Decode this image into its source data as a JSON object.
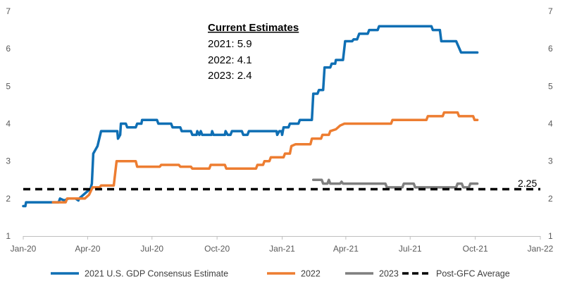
{
  "chart_data": {
    "type": "line",
    "title": "",
    "xlabel": "",
    "ylabel": "",
    "ylim": [
      1,
      7
    ],
    "yticks": [
      1,
      2,
      3,
      4,
      5,
      6,
      7
    ],
    "y_axis_right": true,
    "grid": false,
    "legend_position": "bottom",
    "x_range": [
      "2020-01-01",
      "2022-01-01"
    ],
    "x_ticks": [
      {
        "date": "2020-01-01",
        "label": "Jan-20"
      },
      {
        "date": "2020-04-01",
        "label": "Apr-20"
      },
      {
        "date": "2020-07-01",
        "label": "Jul-20"
      },
      {
        "date": "2020-10-01",
        "label": "Oct-20"
      },
      {
        "date": "2021-01-01",
        "label": "Jan-21"
      },
      {
        "date": "2021-04-01",
        "label": "Apr-21"
      },
      {
        "date": "2021-07-01",
        "label": "Jul-21"
      },
      {
        "date": "2021-10-01",
        "label": "Oct-21"
      },
      {
        "date": "2022-01-01",
        "label": "Jan-22"
      }
    ],
    "series": [
      {
        "name": "2021 U.S. GDP Consensus Estimate",
        "color": "#0F6FB4",
        "points": [
          [
            "2020-01-01",
            1.8
          ],
          [
            "2020-01-04",
            1.8
          ],
          [
            "2020-01-05",
            1.9
          ],
          [
            "2020-02-20",
            1.9
          ],
          [
            "2020-02-22",
            2.0
          ],
          [
            "2020-02-28",
            1.95
          ],
          [
            "2020-03-05",
            2.0
          ],
          [
            "2020-03-15",
            2.0
          ],
          [
            "2020-03-19",
            1.95
          ],
          [
            "2020-03-20",
            2.0
          ],
          [
            "2020-04-01",
            2.2
          ],
          [
            "2020-04-05",
            2.25
          ],
          [
            "2020-04-07",
            2.4
          ],
          [
            "2020-04-09",
            3.2
          ],
          [
            "2020-04-12",
            3.3
          ],
          [
            "2020-04-15",
            3.4
          ],
          [
            "2020-04-20",
            3.8
          ],
          [
            "2020-05-13",
            3.8
          ],
          [
            "2020-05-14",
            3.6
          ],
          [
            "2020-05-17",
            3.7
          ],
          [
            "2020-05-18",
            4.0
          ],
          [
            "2020-05-25",
            4.0
          ],
          [
            "2020-05-27",
            3.9
          ],
          [
            "2020-06-08",
            3.9
          ],
          [
            "2020-06-10",
            4.0
          ],
          [
            "2020-06-16",
            4.0
          ],
          [
            "2020-06-17",
            4.1
          ],
          [
            "2020-07-08",
            4.1
          ],
          [
            "2020-07-10",
            4.0
          ],
          [
            "2020-07-28",
            4.0
          ],
          [
            "2020-07-30",
            3.9
          ],
          [
            "2020-08-10",
            3.9
          ],
          [
            "2020-08-12",
            3.8
          ],
          [
            "2020-08-25",
            3.8
          ],
          [
            "2020-08-27",
            3.7
          ],
          [
            "2020-09-02",
            3.7
          ],
          [
            "2020-09-03",
            3.8
          ],
          [
            "2020-09-06",
            3.7
          ],
          [
            "2020-09-08",
            3.8
          ],
          [
            "2020-09-10",
            3.7
          ],
          [
            "2020-09-23",
            3.7
          ],
          [
            "2020-09-24",
            3.8
          ],
          [
            "2020-09-26",
            3.7
          ],
          [
            "2020-10-12",
            3.7
          ],
          [
            "2020-10-13",
            3.8
          ],
          [
            "2020-10-16",
            3.7
          ],
          [
            "2020-10-20",
            3.7
          ],
          [
            "2020-10-22",
            3.8
          ],
          [
            "2020-11-05",
            3.8
          ],
          [
            "2020-11-07",
            3.7
          ],
          [
            "2020-11-13",
            3.7
          ],
          [
            "2020-11-15",
            3.8
          ],
          [
            "2020-12-24",
            3.8
          ],
          [
            "2020-12-25",
            3.7
          ],
          [
            "2020-12-28",
            3.8
          ],
          [
            "2020-12-31",
            3.8
          ],
          [
            "2021-01-01",
            3.7
          ],
          [
            "2021-01-02",
            3.8
          ],
          [
            "2021-01-03",
            3.9
          ],
          [
            "2021-01-10",
            3.9
          ],
          [
            "2021-01-12",
            4.0
          ],
          [
            "2021-01-24",
            4.0
          ],
          [
            "2021-01-26",
            4.1
          ],
          [
            "2021-02-12",
            4.1
          ],
          [
            "2021-02-14",
            4.8
          ],
          [
            "2021-02-20",
            4.8
          ],
          [
            "2021-02-22",
            4.9
          ],
          [
            "2021-02-28",
            4.9
          ],
          [
            "2021-03-02",
            5.5
          ],
          [
            "2021-03-10",
            5.5
          ],
          [
            "2021-03-12",
            5.6
          ],
          [
            "2021-03-17",
            5.6
          ],
          [
            "2021-03-18",
            5.7
          ],
          [
            "2021-03-28",
            5.7
          ],
          [
            "2021-03-31",
            6.2
          ],
          [
            "2021-04-10",
            6.2
          ],
          [
            "2021-04-12",
            6.25
          ],
          [
            "2021-04-17",
            6.25
          ],
          [
            "2021-04-20",
            6.4
          ],
          [
            "2021-05-02",
            6.4
          ],
          [
            "2021-05-04",
            6.5
          ],
          [
            "2021-05-16",
            6.5
          ],
          [
            "2021-05-18",
            6.6
          ],
          [
            "2021-07-31",
            6.6
          ],
          [
            "2021-08-02",
            6.5
          ],
          [
            "2021-08-12",
            6.5
          ],
          [
            "2021-08-14",
            6.2
          ],
          [
            "2021-09-04",
            6.2
          ],
          [
            "2021-09-11",
            5.9
          ],
          [
            "2021-10-04",
            5.9
          ]
        ]
      },
      {
        "name": "2022",
        "color": "#ED7D31",
        "points": [
          [
            "2020-02-12",
            1.9
          ],
          [
            "2020-03-01",
            1.9
          ],
          [
            "2020-03-03",
            2.0
          ],
          [
            "2020-03-28",
            2.0
          ],
          [
            "2020-04-03",
            2.1
          ],
          [
            "2020-04-08",
            2.3
          ],
          [
            "2020-04-18",
            2.3
          ],
          [
            "2020-04-20",
            2.35
          ],
          [
            "2020-05-08",
            2.35
          ],
          [
            "2020-05-12",
            3.0
          ],
          [
            "2020-06-08",
            3.0
          ],
          [
            "2020-06-10",
            2.85
          ],
          [
            "2020-07-12",
            2.85
          ],
          [
            "2020-07-14",
            2.9
          ],
          [
            "2020-08-08",
            2.9
          ],
          [
            "2020-08-10",
            2.85
          ],
          [
            "2020-08-25",
            2.85
          ],
          [
            "2020-08-27",
            2.8
          ],
          [
            "2020-09-20",
            2.8
          ],
          [
            "2020-09-22",
            2.9
          ],
          [
            "2020-10-12",
            2.9
          ],
          [
            "2020-10-14",
            2.8
          ],
          [
            "2020-11-25",
            2.8
          ],
          [
            "2020-11-27",
            2.9
          ],
          [
            "2020-12-05",
            2.9
          ],
          [
            "2020-12-07",
            3.0
          ],
          [
            "2020-12-14",
            3.0
          ],
          [
            "2020-12-16",
            3.1
          ],
          [
            "2021-01-03",
            3.1
          ],
          [
            "2021-01-05",
            3.2
          ],
          [
            "2021-01-12",
            3.2
          ],
          [
            "2021-01-14",
            3.4
          ],
          [
            "2021-01-20",
            3.45
          ],
          [
            "2021-02-10",
            3.45
          ],
          [
            "2021-02-12",
            3.6
          ],
          [
            "2021-02-25",
            3.6
          ],
          [
            "2021-02-27",
            3.7
          ],
          [
            "2021-03-08",
            3.7
          ],
          [
            "2021-03-10",
            3.8
          ],
          [
            "2021-03-18",
            3.85
          ],
          [
            "2021-03-24",
            3.95
          ],
          [
            "2021-03-30",
            4.0
          ],
          [
            "2021-06-04",
            4.0
          ],
          [
            "2021-06-06",
            4.1
          ],
          [
            "2021-07-24",
            4.1
          ],
          [
            "2021-07-26",
            4.2
          ],
          [
            "2021-08-16",
            4.2
          ],
          [
            "2021-08-18",
            4.3
          ],
          [
            "2021-09-06",
            4.3
          ],
          [
            "2021-09-08",
            4.2
          ],
          [
            "2021-09-28",
            4.2
          ],
          [
            "2021-09-30",
            4.1
          ],
          [
            "2021-10-04",
            4.1
          ]
        ]
      },
      {
        "name": "2023",
        "color": "#7F7F7F",
        "points": [
          [
            "2021-02-14",
            2.5
          ],
          [
            "2021-02-26",
            2.5
          ],
          [
            "2021-02-28",
            2.4
          ],
          [
            "2021-03-06",
            2.4
          ],
          [
            "2021-03-08",
            2.5
          ],
          [
            "2021-03-10",
            2.4
          ],
          [
            "2021-03-24",
            2.4
          ],
          [
            "2021-03-26",
            2.45
          ],
          [
            "2021-03-28",
            2.4
          ],
          [
            "2021-05-27",
            2.4
          ],
          [
            "2021-05-29",
            2.3
          ],
          [
            "2021-06-20",
            2.3
          ],
          [
            "2021-06-22",
            2.4
          ],
          [
            "2021-07-06",
            2.4
          ],
          [
            "2021-07-08",
            2.3
          ],
          [
            "2021-09-04",
            2.3
          ],
          [
            "2021-09-06",
            2.4
          ],
          [
            "2021-09-12",
            2.4
          ],
          [
            "2021-09-14",
            2.3
          ],
          [
            "2021-09-22",
            2.3
          ],
          [
            "2021-09-24",
            2.4
          ],
          [
            "2021-10-04",
            2.4
          ]
        ]
      },
      {
        "name": "Post-GFC Average",
        "color": "#000000",
        "dashed": true,
        "points": [
          [
            "2020-01-01",
            2.25
          ],
          [
            "2022-01-01",
            2.25
          ]
        ]
      }
    ],
    "reference_label": "2.25",
    "annotation": {
      "title": "Current Estimates",
      "lines": [
        "2021: 5.9",
        "2022: 4.1",
        "2023: 2.4"
      ]
    }
  }
}
